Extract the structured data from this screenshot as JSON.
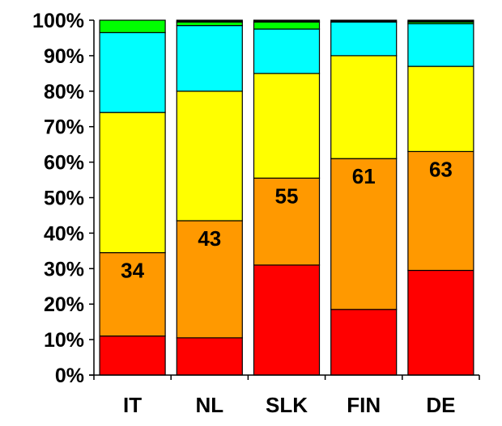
{
  "chart_data": {
    "type": "bar",
    "stacked": true,
    "percent": true,
    "categories": [
      "IT",
      "NL",
      "SLK",
      "FIN",
      "DE"
    ],
    "series": [
      {
        "color": "#ff0000",
        "values": [
          11,
          10.5,
          31,
          18.5,
          29.5
        ]
      },
      {
        "color": "#ff9900",
        "values": [
          23.5,
          33,
          24.5,
          42.5,
          33.5
        ]
      },
      {
        "color": "#ffff00",
        "values": [
          39.5,
          36.5,
          29.5,
          29,
          24
        ]
      },
      {
        "color": "#00ffff",
        "values": [
          22.5,
          18.5,
          12.5,
          9.5,
          12
        ]
      },
      {
        "color": "#00ff00",
        "values": [
          3.5,
          1,
          2,
          0,
          0.5
        ]
      },
      {
        "color": "#000000",
        "values": [
          0,
          0.5,
          0.5,
          0.5,
          0.5
        ]
      }
    ],
    "data_labels": [
      {
        "category": "IT",
        "value": "34"
      },
      {
        "category": "NL",
        "value": "43"
      },
      {
        "category": "SLK",
        "value": "55"
      },
      {
        "category": "FIN",
        "value": "61"
      },
      {
        "category": "DE",
        "value": "63"
      }
    ],
    "y_ticks": [
      "0%",
      "10%",
      "20%",
      "30%",
      "40%",
      "50%",
      "60%",
      "70%",
      "80%",
      "90%",
      "100%"
    ],
    "ylim": [
      0,
      100
    ],
    "grid": false,
    "legend": "none"
  }
}
